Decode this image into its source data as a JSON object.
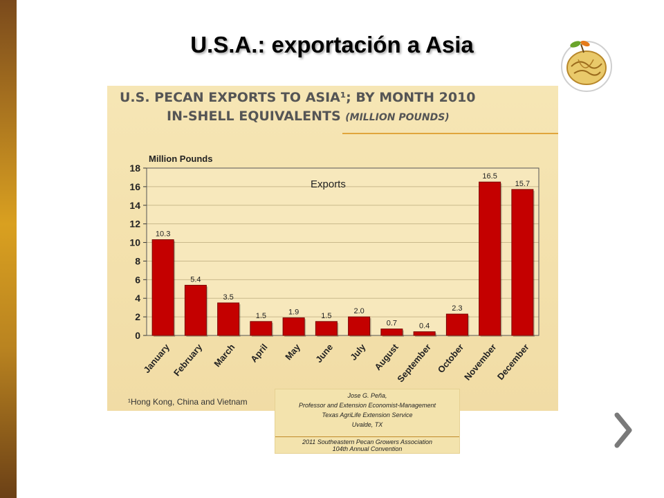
{
  "slide": {
    "title": "U.S.A.: exportación a Asia"
  },
  "chart_title": {
    "line1": "U.S. PECAN EXPORTS TO ASIA¹; BY MONTH 2010",
    "line2": "IN-SHELL EQUIVALENTS",
    "units": "(MILLION POUNDS)"
  },
  "footnote": "¹Hong Kong, China and Vietnam",
  "credit": {
    "name": "Jose G. Peña,",
    "role": "Professor and Extension Economist-Management",
    "org": "Texas AgriLife Extension Service",
    "place": "Uvalde, TX",
    "event": "2011 Southeastern Pecan Growers Association",
    "convention": "104th Annual Convention"
  },
  "colors": {
    "bar": "#c40000",
    "panel": "#f3e1ad",
    "accent": "#e0a53c"
  },
  "icons": {
    "logo": "pecan-logo-icon",
    "next": "chevron-right-icon"
  },
  "chart_data": {
    "type": "bar",
    "ylabel": "Million Pounds",
    "inner_label": "Exports",
    "ylim": [
      0,
      18
    ],
    "yticks": [
      0,
      2,
      4,
      6,
      8,
      10,
      12,
      14,
      16,
      18
    ],
    "grid": true,
    "categories": [
      "January",
      "February",
      "March",
      "April",
      "May",
      "June",
      "July",
      "August",
      "September",
      "October",
      "November",
      "December"
    ],
    "values": [
      10.3,
      5.4,
      3.5,
      1.5,
      1.9,
      1.5,
      2.0,
      0.7,
      0.4,
      2.3,
      16.5,
      15.7
    ],
    "value_labels": [
      "10.3",
      "5.4",
      "3.5",
      "1.5",
      "1.9",
      "1.5",
      "2.0",
      "0.7",
      "0.4",
      "2.3",
      "16.5",
      "15.7"
    ]
  }
}
